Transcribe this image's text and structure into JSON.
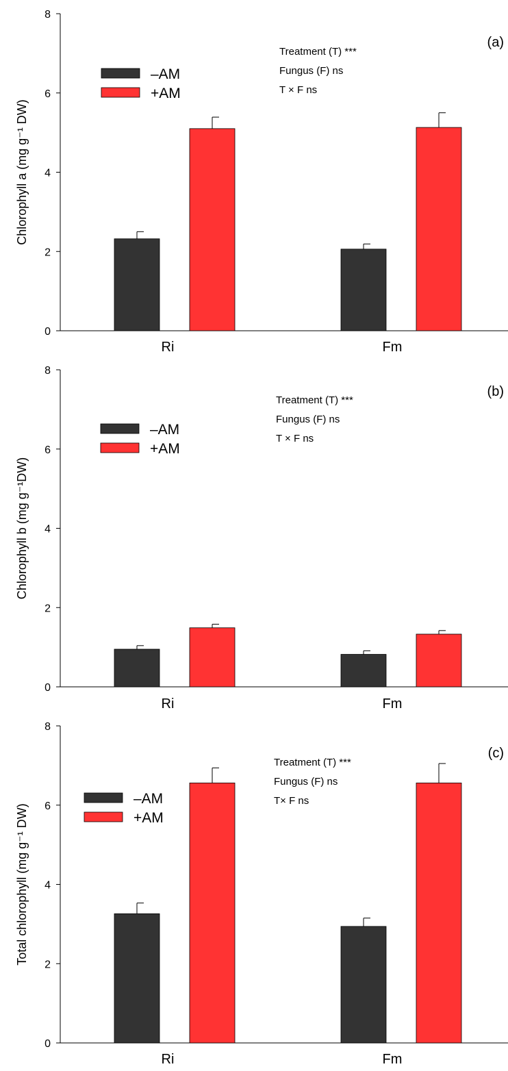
{
  "chart_data": [
    {
      "type": "bar",
      "panel_label": "(a)",
      "ylabel": "Chlorophyll a (mg g⁻¹ DW)",
      "categories": [
        "Ri",
        "Fm"
      ],
      "ylim": [
        0,
        8
      ],
      "yticks": [
        "0",
        "2",
        "4",
        "6",
        "8"
      ],
      "series": [
        {
          "name": "–AM",
          "values": [
            2.32,
            2.06
          ],
          "errors": [
            0.18,
            0.13
          ]
        },
        {
          "name": "+AM",
          "values": [
            5.1,
            5.13
          ],
          "errors": [
            0.29,
            0.37
          ]
        }
      ],
      "annotations": [
        "Treatment  (T) ***",
        "Fungus (F) ns",
        "T × F ns"
      ],
      "legend_position": "top-left",
      "grid": false
    },
    {
      "type": "bar",
      "panel_label": "(b)",
      "ylabel": "Chlorophyll b (mg g⁻¹DW)",
      "categories": [
        "Ri",
        "Fm"
      ],
      "ylim": [
        0,
        8
      ],
      "yticks": [
        "0",
        "2",
        "4",
        "6",
        "8"
      ],
      "series": [
        {
          "name": "–AM",
          "values": [
            0.95,
            0.82
          ],
          "errors": [
            0.09,
            0.09
          ]
        },
        {
          "name": "+AM",
          "values": [
            1.49,
            1.33
          ],
          "errors": [
            0.09,
            0.09
          ]
        }
      ],
      "annotations": [
        "Treatment  (T) ***",
        "Fungus (F) ns",
        "T × F ns"
      ],
      "legend_position": "top-left",
      "grid": false
    },
    {
      "type": "bar",
      "panel_label": "(c)",
      "ylabel": "Total chlorophyll (mg g⁻¹ DW)",
      "categories": [
        "Ri",
        "Fm"
      ],
      "ylim": [
        0,
        8
      ],
      "yticks": [
        "0",
        "2",
        "4",
        "6",
        "8"
      ],
      "series": [
        {
          "name": "–AM",
          "values": [
            3.26,
            2.94
          ],
          "errors": [
            0.27,
            0.21
          ]
        },
        {
          "name": "+AM",
          "values": [
            6.56,
            6.56
          ],
          "errors": [
            0.38,
            0.49
          ]
        }
      ],
      "annotations": [
        "Treatment  (T) ***",
        "Fungus (F) ns",
        "T× F ns"
      ],
      "legend_position": "top-left",
      "grid": false
    }
  ],
  "colors": {
    "minus_am": "#333333",
    "plus_am": "#ff3333",
    "axis": "#000000"
  }
}
